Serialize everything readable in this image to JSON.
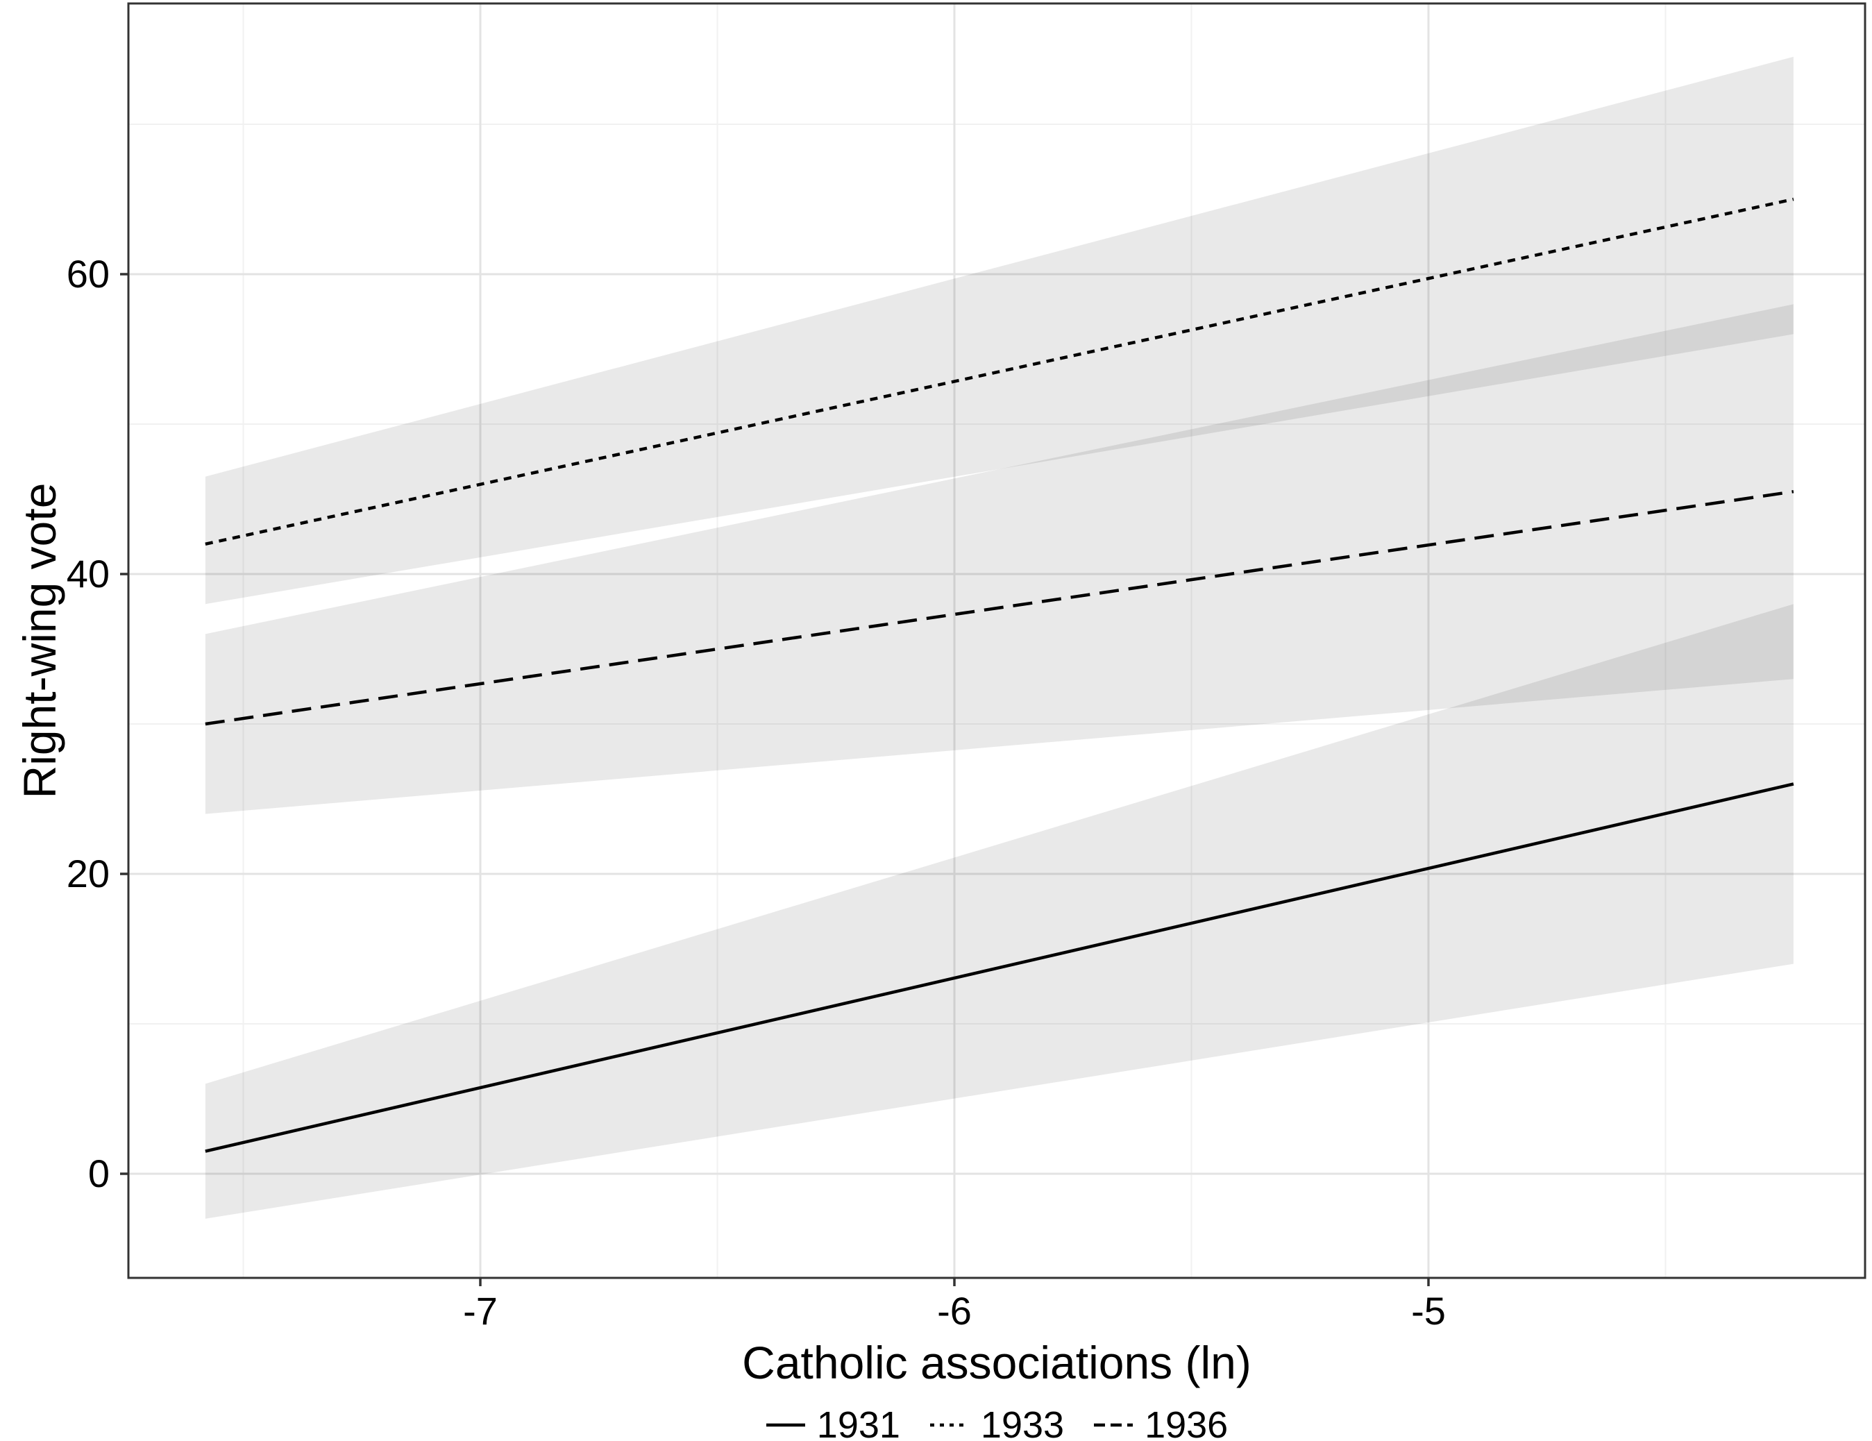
{
  "chart_data": {
    "type": "line",
    "title": "",
    "xlabel": "Catholic associations (ln)",
    "ylabel": "Right-wing vote",
    "xlim": [
      -7.74,
      -4.08
    ],
    "ylim": [
      -6.9,
      78.1
    ],
    "xticks": [
      -7,
      -6,
      -5
    ],
    "xtick_labels": [
      "-7",
      "-6",
      "-5"
    ],
    "yticks": [
      0,
      20,
      40,
      60
    ],
    "ytick_labels": [
      "0",
      "20",
      "40",
      "60"
    ],
    "xticks_minor": [
      -7.5,
      -6.5,
      -5.5,
      -4.5
    ],
    "yticks_minor": [
      10,
      30,
      50,
      70
    ],
    "grid": true,
    "legend_position": "bottom",
    "series": [
      {
        "name": "1931",
        "linestyle": "solid",
        "x": [
          -7.58,
          -4.23
        ],
        "y": [
          1.5,
          26.0
        ],
        "ci_lower": [
          -3.0,
          14.0
        ],
        "ci_upper": [
          6.0,
          38.0
        ]
      },
      {
        "name": "1933",
        "linestyle": "dotted",
        "x": [
          -7.58,
          -4.23
        ],
        "y": [
          42.0,
          65.0
        ],
        "ci_lower": [
          38.0,
          56.0
        ],
        "ci_upper": [
          46.5,
          74.5
        ]
      },
      {
        "name": "1936",
        "linestyle": "dashed",
        "x": [
          -7.58,
          -4.23
        ],
        "y": [
          30.0,
          45.5
        ],
        "ci_lower": [
          24.0,
          33.0
        ],
        "ci_upper": [
          36.0,
          58.0
        ]
      }
    ],
    "legend": [
      {
        "label": "1931",
        "linestyle": "solid"
      },
      {
        "label": "1933",
        "linestyle": "dotted"
      },
      {
        "label": "1936",
        "linestyle": "dashed"
      }
    ],
    "colors": {
      "line": "#000000",
      "ribbon": "rgba(0,0,0,0.085)",
      "grid_major": "#e3e3e3",
      "grid_minor": "#f1f1f1",
      "panel_border": "#333333",
      "tick": "#333333",
      "text": "#000000",
      "background": "#ffffff"
    }
  }
}
